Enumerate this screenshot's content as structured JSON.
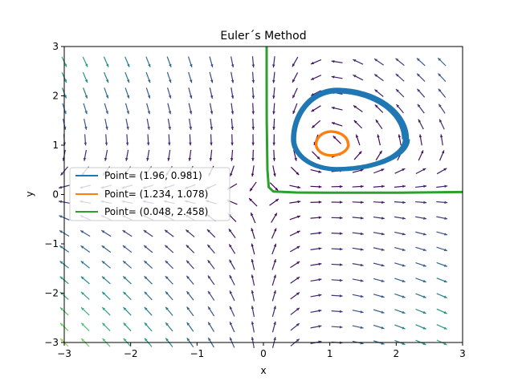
{
  "chart_data": {
    "type": "line",
    "title": "Euler´s Method",
    "xlabel": "x",
    "ylabel": "y",
    "xlim": [
      -3,
      3
    ],
    "ylim": [
      -3,
      3
    ],
    "xticks": [
      -3,
      -2,
      -1,
      0,
      1,
      2,
      3
    ],
    "yticks": [
      -3,
      -2,
      -1,
      0,
      1,
      2,
      3
    ],
    "tick_labels_x": [
      "−3",
      "−2",
      "−1",
      "0",
      "1",
      "2",
      "3"
    ],
    "tick_labels_y": [
      "−3",
      "−2",
      "−1",
      "0",
      "1",
      "2",
      "3"
    ],
    "grid": false,
    "legend_position": "center-left",
    "vector_field": {
      "type": "quiver",
      "colormap": "viridis",
      "grid_step": 0.316
    },
    "series": [
      {
        "name": "Point= (1.96, 0.981)",
        "color": "#1f77b4",
        "start": [
          1.96,
          0.981
        ],
        "shape": "spiral",
        "center": [
          1.0,
          1.0
        ],
        "x_range": [
          0.38,
          2.1
        ],
        "y_range": [
          0.38,
          2.1
        ]
      },
      {
        "name": "Point= (1.234, 1.078)",
        "color": "#ff7f0e",
        "start": [
          1.234,
          1.078
        ],
        "shape": "loop",
        "center": [
          1.0,
          1.0
        ],
        "x_range": [
          0.78,
          1.28
        ],
        "y_range": [
          0.77,
          1.28
        ]
      },
      {
        "name": "Point= (0.048, 2.458)",
        "color": "#2ca02c",
        "start": [
          0.048,
          2.458
        ],
        "shape": "L-curve",
        "points": [
          [
            0.048,
            3.0
          ],
          [
            0.048,
            2.458
          ],
          [
            0.05,
            1.5
          ],
          [
            0.06,
            0.5
          ],
          [
            0.08,
            0.15
          ],
          [
            0.15,
            0.06
          ],
          [
            0.5,
            0.04
          ],
          [
            1.0,
            0.035
          ],
          [
            2.0,
            0.035
          ],
          [
            3.0,
            0.05
          ]
        ]
      }
    ]
  }
}
